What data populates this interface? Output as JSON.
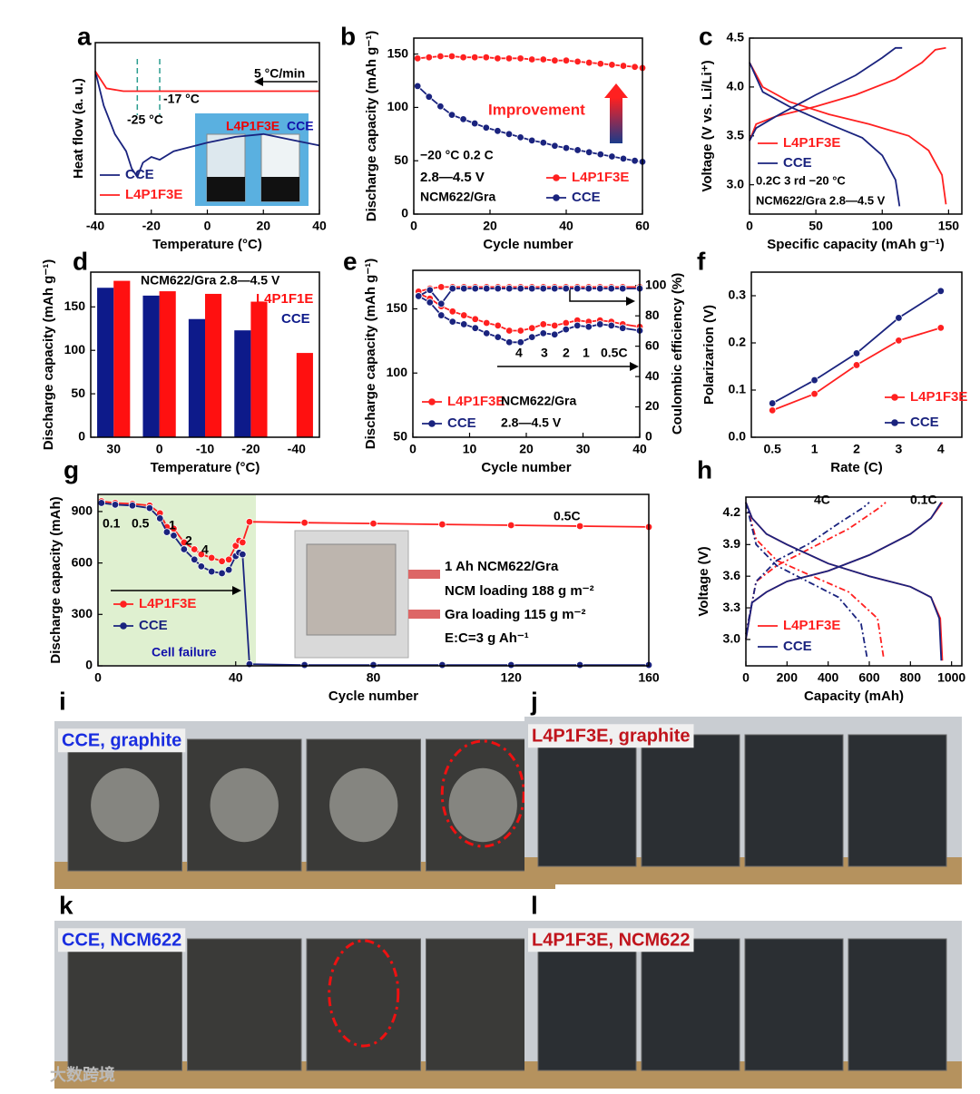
{
  "chart_data": [
    {
      "panel": "a",
      "type": "line",
      "xlabel": "Temperature (°C)",
      "ylabel": "Heat flow (a. u.)",
      "xlim": [
        -40,
        40
      ],
      "xticks": [
        -40,
        -20,
        0,
        20,
        40
      ],
      "ylim": [
        4,
        10
      ],
      "reference_lines": [
        -25,
        -17
      ],
      "annotations": [
        "-25 °C",
        "-17 °C",
        "5 °C/min",
        "L4P1F3E",
        "CCE"
      ],
      "series": [
        {
          "name": "CCE",
          "color": "#1a237e",
          "x": [
            -40,
            -37,
            -33,
            -29,
            -27,
            -25,
            -23,
            -20,
            -17,
            -12,
            0,
            10,
            20,
            30,
            40
          ],
          "values": [
            9.0,
            7.8,
            6.8,
            6.2,
            5.6,
            5.3,
            5.8,
            6.0,
            5.9,
            6.2,
            6.5,
            6.7,
            6.8,
            6.6,
            6.4
          ]
        },
        {
          "name": "L4P1F3E",
          "color": "#ff2020",
          "x": [
            -40,
            -36,
            -30,
            -20,
            0,
            20,
            40
          ],
          "values": [
            9.0,
            8.4,
            8.3,
            8.3,
            8.3,
            8.3,
            8.3
          ]
        }
      ]
    },
    {
      "panel": "b",
      "type": "line",
      "markers": true,
      "xlabel": "Cycle number",
      "ylabel": "Discharge capacity (mAh g⁻¹)",
      "xlim": [
        0,
        60
      ],
      "xticks": [
        0,
        20,
        40,
        60
      ],
      "ylim": [
        0,
        165
      ],
      "yticks": [
        0,
        50,
        100,
        150
      ],
      "annotations": [
        "Improvement",
        "−20 °C   0.2 C",
        "2.8—4.5 V",
        "NCM622/Gra"
      ],
      "series": [
        {
          "name": "L4P1F3E",
          "color": "#ff2020",
          "x": [
            1,
            4,
            7,
            10,
            13,
            16,
            19,
            22,
            25,
            28,
            31,
            34,
            37,
            40,
            43,
            46,
            49,
            52,
            55,
            58,
            60
          ],
          "values": [
            146,
            147,
            148,
            148,
            147,
            147,
            147,
            146,
            146,
            146,
            145,
            145,
            144,
            144,
            143,
            142,
            141,
            140,
            139,
            138,
            137
          ]
        },
        {
          "name": "CCE",
          "color": "#1a237e",
          "x": [
            1,
            4,
            7,
            10,
            13,
            16,
            19,
            22,
            25,
            28,
            31,
            34,
            37,
            40,
            43,
            46,
            49,
            52,
            55,
            58,
            60
          ],
          "values": [
            120,
            110,
            101,
            93,
            89,
            85,
            81,
            78,
            75,
            72,
            69,
            67,
            64,
            62,
            60,
            58,
            56,
            54,
            52,
            50,
            49
          ]
        }
      ]
    },
    {
      "panel": "c",
      "type": "line",
      "xlabel": "Specific capacity (mAh g⁻¹)",
      "ylabel": "Voltage (V vs. Li/Li⁺)",
      "xlim": [
        0,
        160
      ],
      "xticks": [
        0,
        50,
        100,
        150
      ],
      "ylim": [
        2.7,
        4.5
      ],
      "yticks": [
        {
          "value": 3,
          "label": "3.0"
        },
        3.5,
        {
          "value": 4,
          "label": "4.0"
        },
        4.5
      ],
      "annotations": [
        "0.2C   3 rd   −20 °C",
        "NCM622/Gra   2.8—4.5 V"
      ],
      "series": [
        {
          "name": "L4P1F3E",
          "color": "#ff2020",
          "curves": [
            {
              "x": [
                0,
                5,
                20,
                50,
                80,
                110,
                130,
                140,
                148
              ],
              "values": [
                3.45,
                3.62,
                3.7,
                3.8,
                3.92,
                4.08,
                4.25,
                4.38,
                4.4
              ]
            },
            {
              "x": [
                0,
                10,
                30,
                60,
                90,
                120,
                135,
                145,
                148
              ],
              "values": [
                4.25,
                4.0,
                3.85,
                3.72,
                3.62,
                3.5,
                3.35,
                3.1,
                2.8
              ]
            }
          ]
        },
        {
          "name": "CCE",
          "color": "#1a237e",
          "curves": [
            {
              "x": [
                0,
                5,
                20,
                50,
                80,
                100,
                110,
                115
              ],
              "values": [
                3.45,
                3.58,
                3.7,
                3.92,
                4.12,
                4.3,
                4.4,
                4.4
              ]
            },
            {
              "x": [
                0,
                10,
                30,
                60,
                85,
                100,
                110,
                113
              ],
              "values": [
                4.25,
                3.95,
                3.8,
                3.62,
                3.48,
                3.3,
                3.05,
                2.78
              ]
            }
          ]
        }
      ]
    },
    {
      "panel": "d",
      "type": "bar",
      "xlabel": "Temperature (°C)",
      "ylabel": "Discharge capacity (mAh g⁻¹)",
      "categories": [
        "30",
        "0",
        "-10",
        "-20",
        "-40"
      ],
      "ylim": [
        0,
        190
      ],
      "yticks": [
        0,
        50,
        100,
        150
      ],
      "annotations": [
        "NCM622/Gra   2.8—4.5 V"
      ],
      "series": [
        {
          "name": "L4P1F1E",
          "color": "#ff1010",
          "values": [
            180,
            168,
            165,
            156,
            97
          ]
        },
        {
          "name": "CCE",
          "color": "#0d1a8a",
          "values": [
            172,
            163,
            136,
            123,
            null
          ]
        }
      ]
    },
    {
      "panel": "e",
      "type": "line",
      "markers": true,
      "xlabel": "Cycle number",
      "ylabel": "Discharge capacity (mAh g⁻¹)",
      "y2label": "Coulombic efficiency (%)",
      "xlim": [
        0,
        40
      ],
      "xticks": [
        0,
        10,
        20,
        30,
        40
      ],
      "ylim": [
        50,
        180
      ],
      "yticks": [
        50,
        100,
        150
      ],
      "y2lim": [
        0,
        110
      ],
      "y2ticks": [
        0,
        20,
        40,
        60,
        80,
        100
      ],
      "annotations": [
        "4",
        "3",
        "2",
        "1",
        "0.5C",
        "NCM622/Gra",
        "2.8—4.5 V"
      ],
      "series": [
        {
          "name": "L4P1F3E",
          "color": "#ff2020",
          "x": [
            1,
            3,
            5,
            7,
            9,
            11,
            13,
            15,
            17,
            19,
            21,
            23,
            25,
            27,
            29,
            31,
            33,
            35,
            37,
            40
          ],
          "values": [
            162,
            158,
            152,
            148,
            145,
            142,
            139,
            137,
            133,
            133,
            135,
            138,
            137,
            139,
            141,
            140,
            141,
            140,
            138,
            136
          ],
          "efficiency": [
            96,
            98,
            99,
            99,
            99,
            99,
            99,
            99,
            99,
            99,
            99,
            99,
            99,
            99,
            99,
            99,
            99,
            99,
            99,
            99
          ]
        },
        {
          "name": "CCE",
          "color": "#1a237e",
          "x": [
            1,
            3,
            5,
            7,
            9,
            11,
            13,
            15,
            17,
            19,
            21,
            23,
            25,
            27,
            29,
            31,
            33,
            35,
            37,
            40
          ],
          "values": [
            160,
            155,
            145,
            140,
            138,
            135,
            131,
            128,
            124,
            124,
            128,
            131,
            130,
            134,
            137,
            136,
            138,
            137,
            135,
            133
          ],
          "efficiency": [
            93,
            97,
            88,
            98,
            98,
            98,
            98,
            98,
            98,
            98,
            98,
            98,
            98,
            98,
            98,
            98,
            98,
            98,
            98,
            98
          ]
        }
      ]
    },
    {
      "panel": "f",
      "type": "line",
      "markers": true,
      "xlabel": "Rate (C)",
      "ylabel": "Polarizarion (V)",
      "categories": [
        "0.5",
        "1",
        "2",
        "3",
        "4"
      ],
      "ylim": [
        0,
        0.35
      ],
      "yticks": [
        {
          "value": 0,
          "label": "0.0"
        },
        0.1,
        0.2,
        0.3
      ],
      "series": [
        {
          "name": "L4P1F3E",
          "color": "#ff2020",
          "values": [
            0.057,
            0.092,
            0.153,
            0.205,
            0.232
          ]
        },
        {
          "name": "CCE",
          "color": "#1a237e",
          "values": [
            0.072,
            0.121,
            0.178,
            0.253,
            0.31
          ]
        }
      ]
    },
    {
      "panel": "g",
      "type": "line",
      "markers": true,
      "xlabel": "Cycle number",
      "ylabel": "Discharge capacity (mAh)",
      "xlim": [
        0,
        160
      ],
      "xticks": [
        0,
        40,
        80,
        120,
        160
      ],
      "ylim": [
        0,
        1000
      ],
      "yticks": [
        0,
        300,
        600,
        900
      ],
      "annotations": [
        "0.1",
        "0.5",
        "1",
        "2",
        "4",
        "0.5C",
        "Cell failure",
        "1 Ah NCM622/Gra",
        "NCM loading 188 g m⁻²",
        "Gra loading 115 g m⁻²",
        "E:C=3 g Ah⁻¹"
      ],
      "series": [
        {
          "name": "L4P1F3E",
          "color": "#ff2020",
          "x": [
            1,
            5,
            10,
            15,
            18,
            20,
            22,
            25,
            28,
            30,
            33,
            36,
            38,
            40,
            41,
            42,
            44,
            60,
            80,
            100,
            120,
            140,
            160
          ],
          "values": [
            960,
            950,
            945,
            935,
            890,
            810,
            800,
            720,
            680,
            650,
            630,
            610,
            620,
            700,
            730,
            720,
            840,
            835,
            830,
            825,
            820,
            815,
            810
          ]
        },
        {
          "name": "CCE",
          "color": "#1a237e",
          "x": [
            1,
            5,
            10,
            15,
            18,
            20,
            22,
            25,
            28,
            30,
            33,
            36,
            38,
            40,
            41,
            42,
            44,
            60,
            80,
            100,
            120,
            140,
            160
          ],
          "values": [
            950,
            940,
            935,
            920,
            860,
            780,
            760,
            680,
            620,
            580,
            550,
            540,
            560,
            640,
            660,
            650,
            10,
            5,
            5,
            5,
            5,
            5,
            5
          ]
        }
      ]
    },
    {
      "panel": "h",
      "type": "line",
      "xlabel": "Capacity (mAh)",
      "ylabel": "Voltage (V)",
      "xlim": [
        0,
        1050
      ],
      "xticks": [
        0,
        200,
        400,
        600,
        800,
        1000
      ],
      "ylim": [
        2.75,
        4.35
      ],
      "yticks": [
        {
          "value": 3,
          "label": "3.0"
        },
        3.3,
        3.6,
        3.9,
        4.2
      ],
      "annotations": [
        "4C",
        "0.1C"
      ],
      "series": [
        {
          "name": "L4P1F3E",
          "color": "#ff2020",
          "curves": [
            {
              "x": [
                0,
                30,
                100,
                200,
                400,
                600,
                800,
                900,
                955
              ],
              "values": [
                3.0,
                3.35,
                3.45,
                3.55,
                3.65,
                3.8,
                4.0,
                4.15,
                4.3
              ]
            },
            {
              "x": [
                0,
                30,
                100,
                200,
                400,
                600,
                800,
                900,
                945,
                955
              ],
              "values": [
                4.3,
                4.15,
                4.0,
                3.9,
                3.72,
                3.6,
                3.5,
                3.4,
                3.2,
                2.8
              ]
            },
            {
              "x": [
                0,
                50,
                150,
                300,
                500,
                650,
                680
              ],
              "values": [
                3.05,
                3.55,
                3.7,
                3.85,
                4.05,
                4.25,
                4.3
              ],
              "style": "dashed"
            },
            {
              "x": [
                0,
                50,
                150,
                300,
                500,
                640,
                670
              ],
              "values": [
                4.3,
                3.95,
                3.75,
                3.62,
                3.45,
                3.2,
                2.82
              ],
              "style": "dashed"
            }
          ]
        },
        {
          "name": "CCE",
          "color": "#1a237e",
          "curves": [
            {
              "x": [
                0,
                30,
                100,
                200,
                400,
                600,
                800,
                900,
                950
              ],
              "values": [
                3.0,
                3.35,
                3.45,
                3.55,
                3.65,
                3.8,
                4.0,
                4.15,
                4.3
              ]
            },
            {
              "x": [
                0,
                30,
                100,
                200,
                400,
                600,
                800,
                900,
                940,
                950
              ],
              "values": [
                4.3,
                4.15,
                4.0,
                3.9,
                3.72,
                3.6,
                3.5,
                3.4,
                3.2,
                2.8
              ]
            },
            {
              "x": [
                0,
                50,
                150,
                300,
                450,
                570,
                600
              ],
              "values": [
                3.05,
                3.55,
                3.75,
                3.9,
                4.1,
                4.25,
                4.3
              ],
              "style": "dashed"
            },
            {
              "x": [
                0,
                50,
                150,
                300,
                450,
                560,
                590
              ],
              "values": [
                4.3,
                3.9,
                3.7,
                3.55,
                3.4,
                3.15,
                2.82
              ],
              "style": "dashed"
            }
          ]
        }
      ]
    }
  ],
  "photos": [
    {
      "panel": "i",
      "label": "CCE, graphite"
    },
    {
      "panel": "j",
      "label": "L4P1F3E, graphite"
    },
    {
      "panel": "k",
      "label": "CCE, NCM622"
    },
    {
      "panel": "l",
      "label": "L4P1F3E, NCM622"
    }
  ],
  "watermark": "大数跨境"
}
